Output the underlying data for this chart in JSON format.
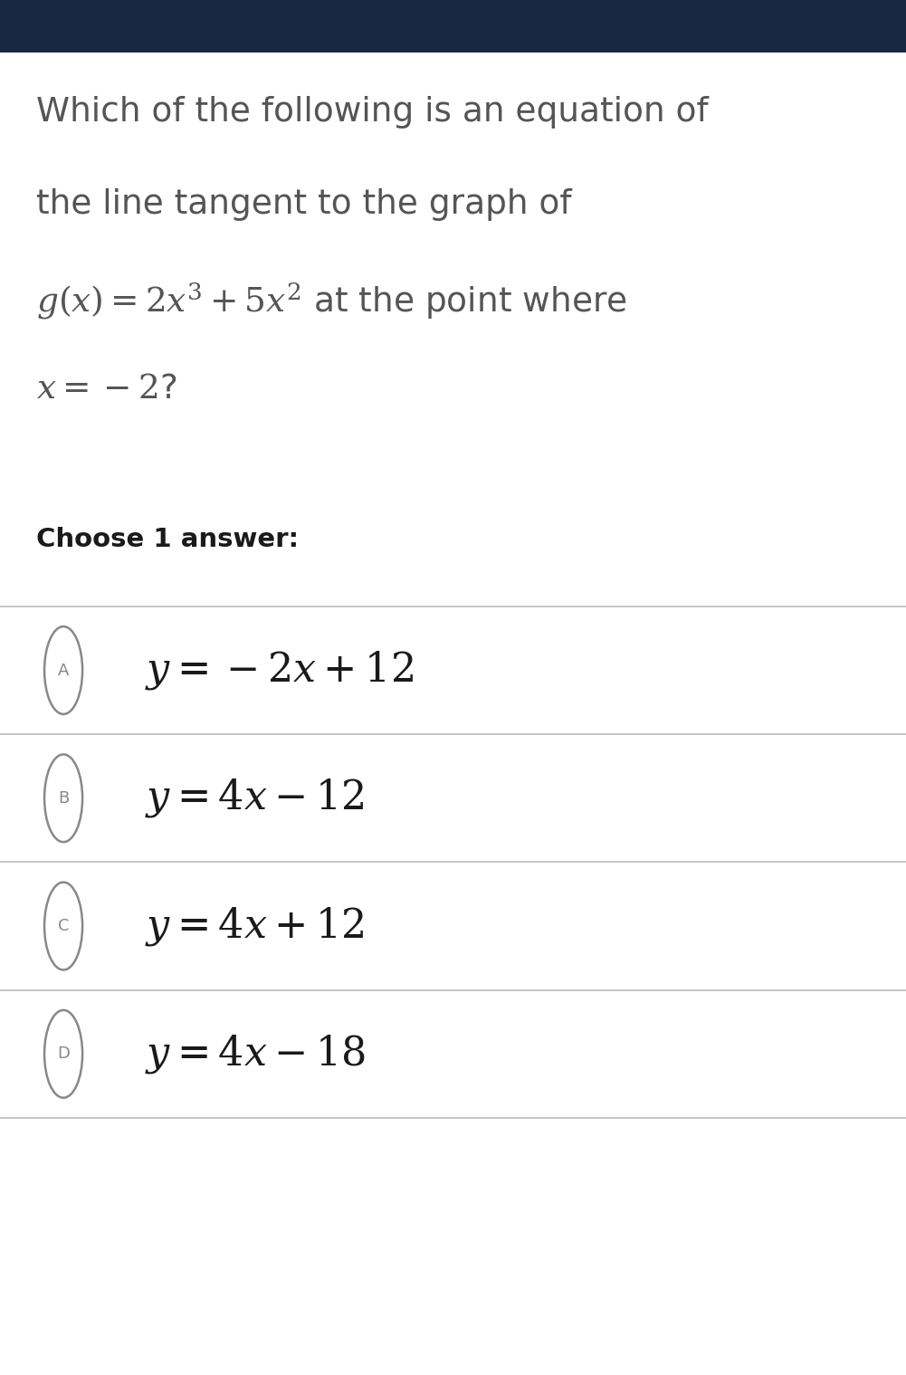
{
  "header_color": "#1a2744",
  "bg_color": "#ffffff",
  "question_text_color": "#555555",
  "answer_text_color": "#1a1a1a",
  "divider_color": "#bbbbbb",
  "circle_color": "#888888",
  "question_lines": [
    "Which of the following is an equation of",
    "the line tangent to the graph of",
    "$g(x) = 2x^3 + 5x^2$ at the point where",
    "$x = -2$?"
  ],
  "choose_label": "Choose 1 answer:",
  "answers": [
    {
      "label": "A",
      "formula": "$y = -2x + 12$"
    },
    {
      "label": "B",
      "formula": "$y = 4x - 12$"
    },
    {
      "label": "C",
      "formula": "$y = 4x + 12$"
    },
    {
      "label": "D",
      "formula": "$y = 4x - 18$"
    }
  ],
  "figwidth": 10.01,
  "figheight": 15.19,
  "dpi": 100
}
